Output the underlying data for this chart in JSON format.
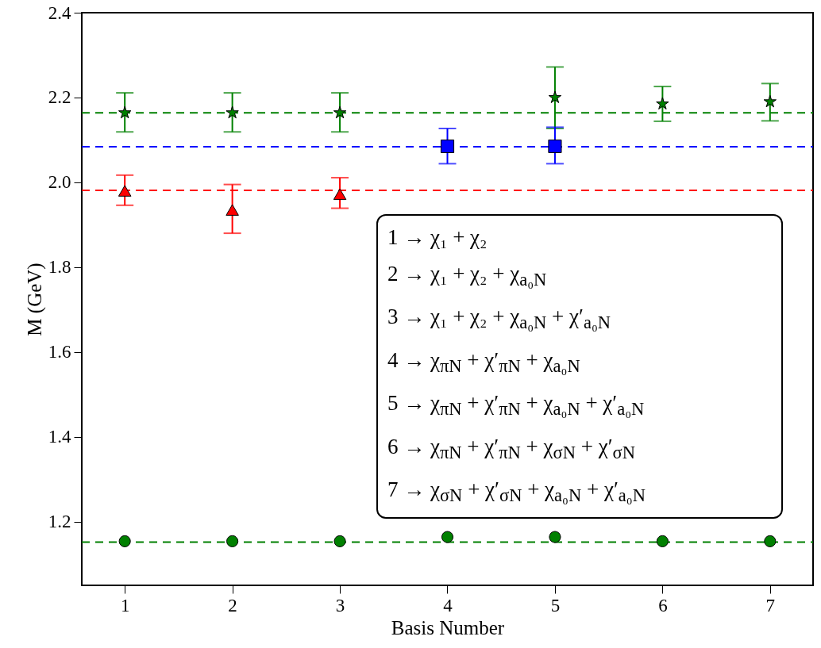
{
  "chart_data": {
    "type": "scatter",
    "xlabel": "Basis Number",
    "ylabel": "M (GeV)",
    "xlim": [
      0.6,
      7.4
    ],
    "xticks": [
      1,
      2,
      3,
      4,
      5,
      6,
      7
    ],
    "ylim": [
      1.05,
      2.4
    ],
    "yticks": [
      1.2,
      1.4,
      1.6,
      1.8,
      {
        "value": 2.0,
        "label": "2.0"
      },
      2.2,
      2.4
    ],
    "grid": false,
    "series": [
      {
        "marker": "star",
        "color": "#008000",
        "x": [
          1,
          2,
          3,
          5,
          6,
          7
        ],
        "values": [
          2.164,
          2.164,
          2.164,
          2.2,
          2.185,
          2.19
        ],
        "errors": [
          [
            2.119,
            2.211
          ],
          [
            2.119,
            2.211
          ],
          [
            2.119,
            2.211
          ],
          [
            2.127,
            2.272
          ],
          [
            2.144,
            2.226
          ],
          [
            2.145,
            2.233
          ]
        ]
      },
      {
        "marker": "square",
        "color": "#0000ff",
        "x": [
          4,
          5
        ],
        "values": [
          2.085,
          2.085
        ],
        "errors": [
          [
            2.044,
            2.127
          ],
          [
            2.044,
            2.13
          ]
        ]
      },
      {
        "marker": "triangle",
        "color": "#ff0000",
        "x": [
          1,
          2,
          3
        ],
        "values": [
          1.98,
          1.935,
          1.972
        ],
        "errors": [
          [
            1.946,
            2.017
          ],
          [
            1.88,
            1.995
          ],
          [
            1.939,
            2.011
          ]
        ]
      },
      {
        "marker": "circle",
        "color": "#008000",
        "x": [
          1,
          2,
          3,
          4,
          5,
          6,
          7
        ],
        "values": [
          1.154,
          1.154,
          1.154,
          1.164,
          1.164,
          1.154,
          1.154
        ]
      }
    ],
    "ref_lines": [
      {
        "axis": "y",
        "value": 2.164,
        "color": "#008000",
        "line_style": "dashed"
      },
      {
        "axis": "y",
        "value": 2.084,
        "color": "#0000ff",
        "line_style": "dashed"
      },
      {
        "axis": "y",
        "value": 1.981,
        "color": "#ff0000",
        "line_style": "dashed"
      },
      {
        "axis": "y",
        "value": 1.152,
        "color": "#008000",
        "line_style": "dashed"
      }
    ],
    "annotations": [
      "1 → χ₁ + χ₂",
      "2 → χ₁ + χ₂ + χ$_{a₀N}$",
      "3 → χ₁ + χ₂ + χ$_{a₀N}$ + χ′$_{a₀N}$",
      "4 → χ$_{πN}$ + χ′$_{πN}$ + χ$_{a₀N}$",
      "5 → χ$_{πN}$ + χ′$_{πN}$ + χ$_{a₀N}$ + χ′$_{a₀N}$",
      "6 → χ$_{πN}$ + χ′$_{πN}$ + χ$_{σN}$ + χ′$_{σN}$",
      "7 → χ$_{σN}$ + χ′$_{σN}$ + χ$_{a₀N}$ + χ′$_{a₀N}$"
    ]
  }
}
